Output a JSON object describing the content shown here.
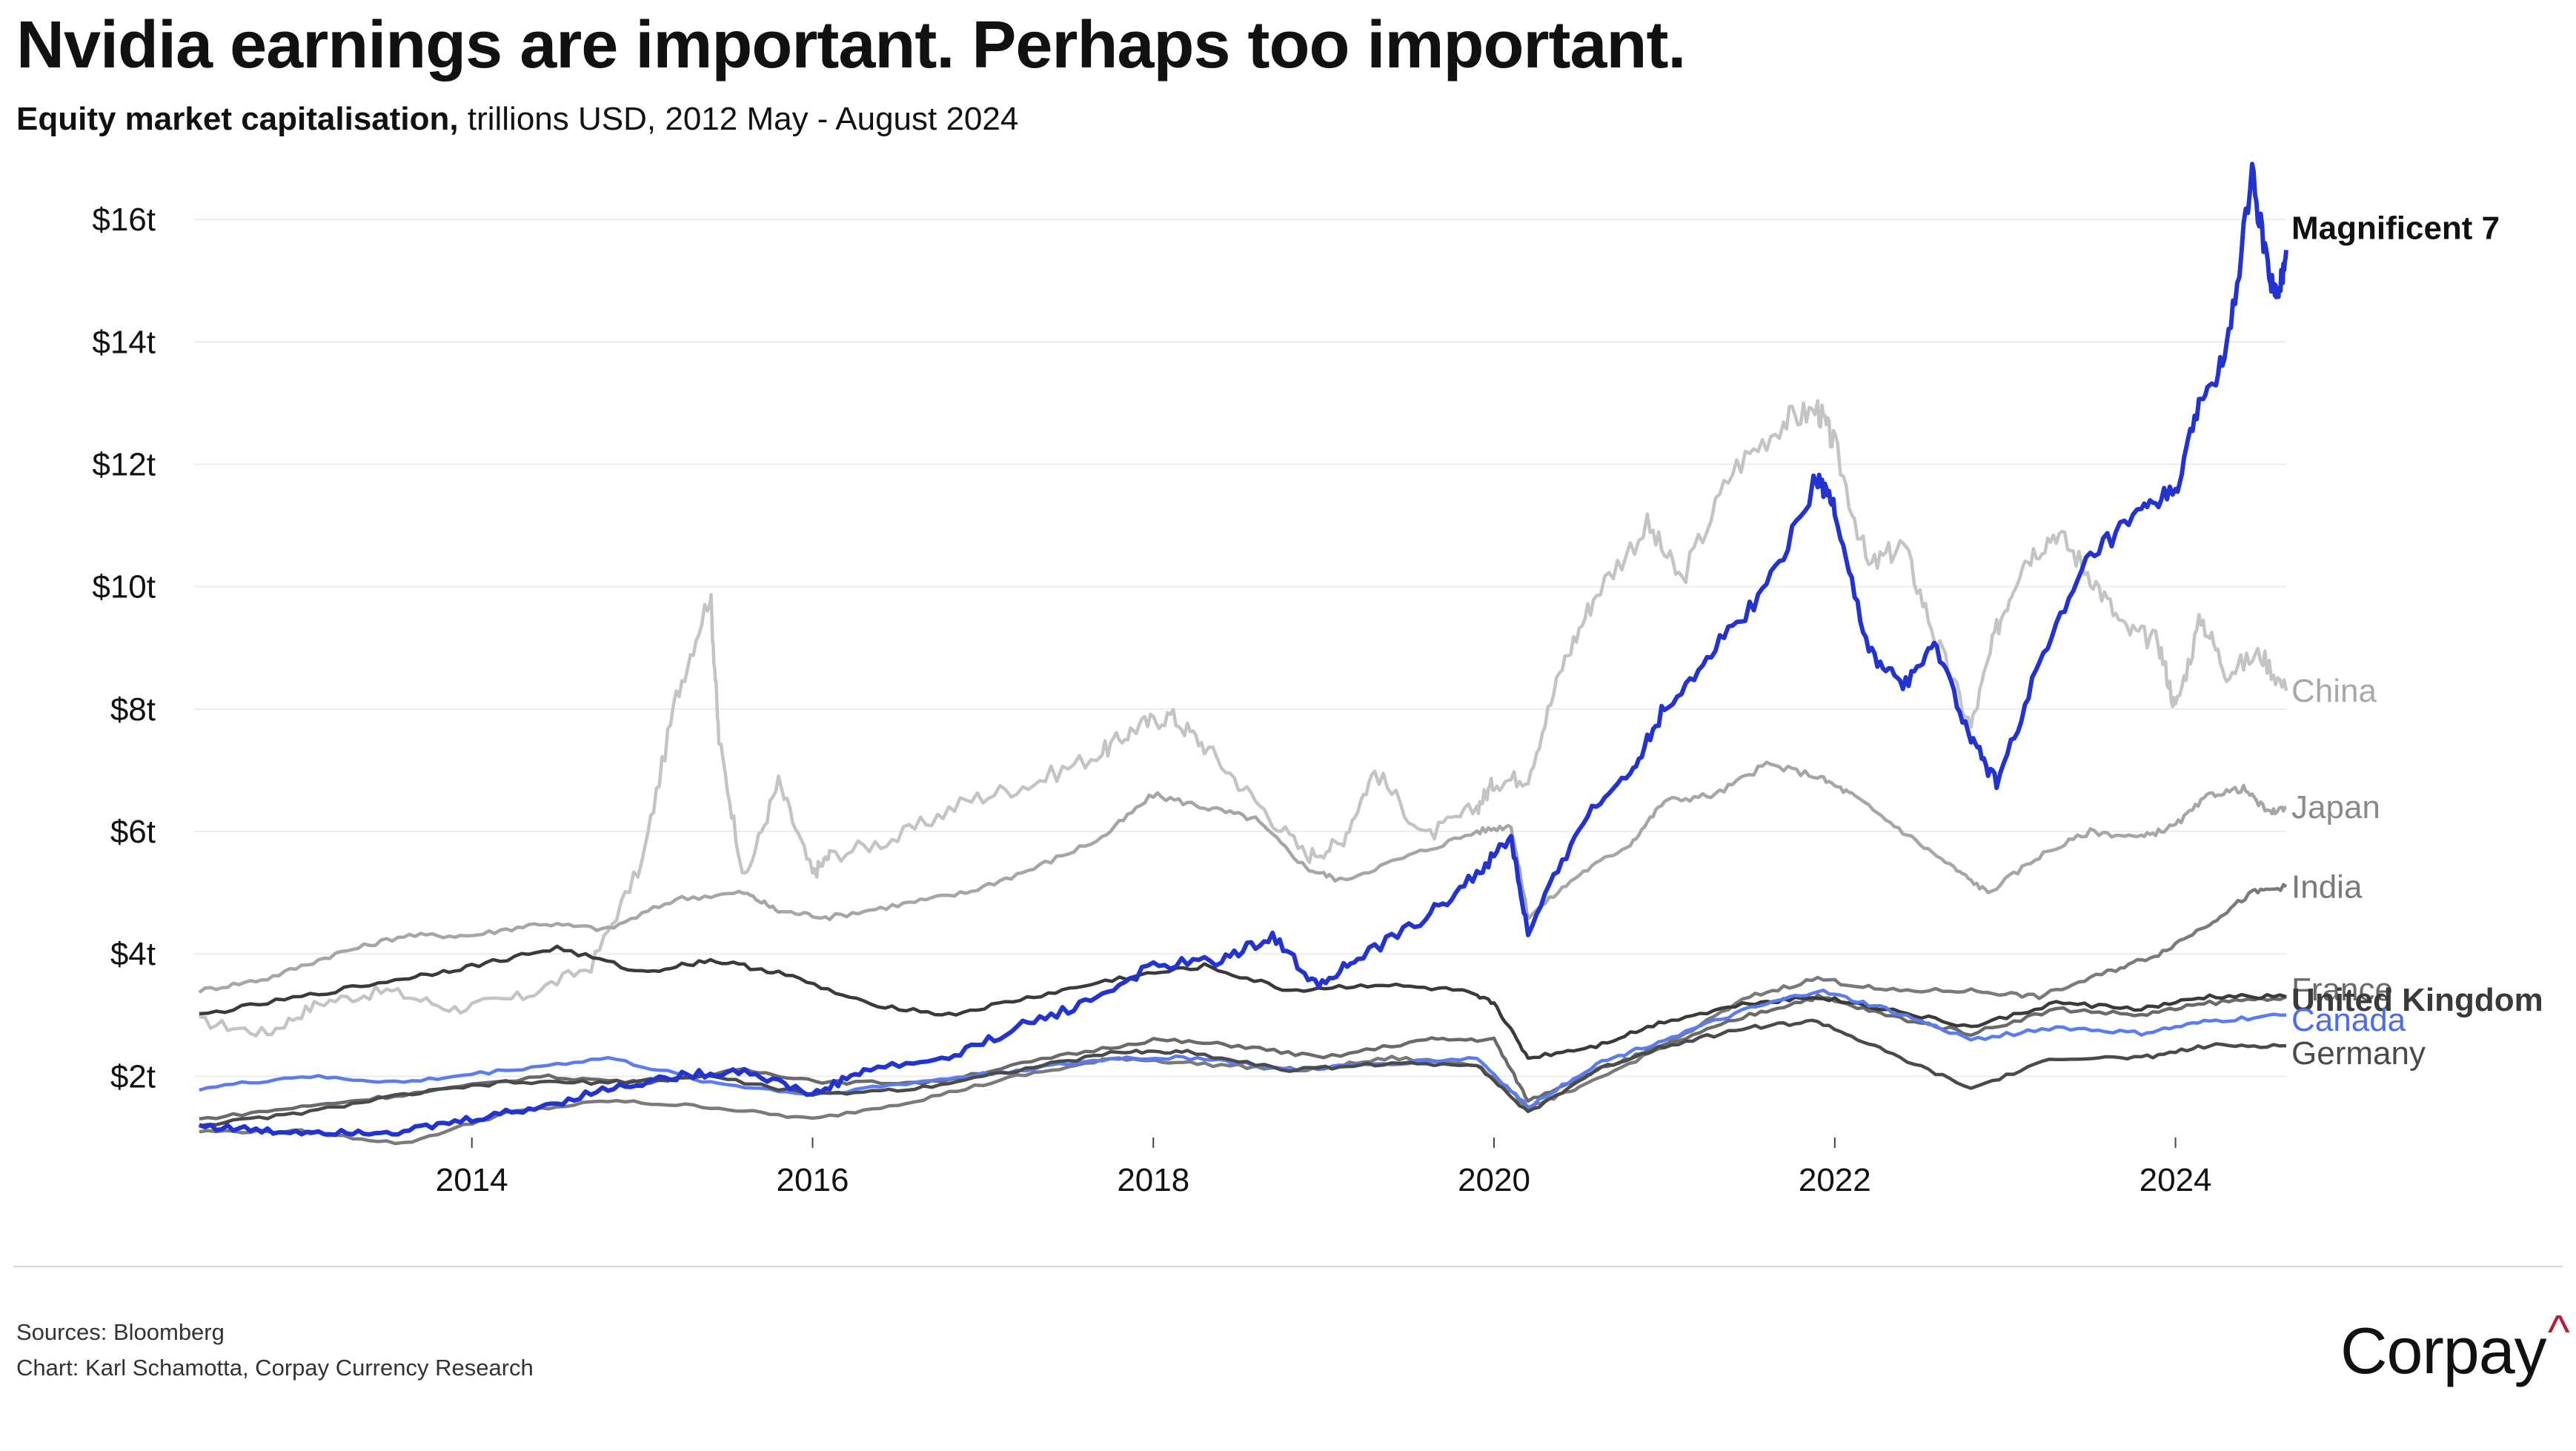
{
  "title": "Nvidia earnings are important. Perhaps too important.",
  "subtitle": {
    "bold": "Equity market capitalisation,",
    "rest": " trillions USD, 2012 May - August 2024"
  },
  "footer": {
    "sources": "Sources: Bloomberg",
    "chart_credit": "Chart: Karl Schamotta, Corpay Currency Research",
    "logo_text": "Corpay",
    "logo_mark": "^"
  },
  "chart_data": {
    "type": "line",
    "title": "Nvidia earnings are important. Perhaps too important.",
    "xlabel": "",
    "ylabel": "Equity market capitalisation, trillions USD",
    "xlim": [
      2012.37,
      2024.65
    ],
    "ylim": [
      1.0,
      16.8
    ],
    "y_ticks": [
      2,
      4,
      6,
      8,
      10,
      12,
      14,
      16
    ],
    "y_tick_labels": [
      "$2t",
      "$4t",
      "$6t",
      "$8t",
      "$10t",
      "$12t",
      "$14t",
      "$16t"
    ],
    "x_ticks": [
      2014,
      2016,
      2018,
      2020,
      2022,
      2024
    ],
    "x_tick_labels": [
      "2014",
      "2016",
      "2018",
      "2020",
      "2022",
      "2024"
    ],
    "grid": true,
    "series": [
      {
        "name": "China",
        "color": "#c4c4c4",
        "x": [
          2012.4,
          2012.8,
          2013.1,
          2013.5,
          2013.9,
          2014.3,
          2014.7,
          2015.0,
          2015.2,
          2015.4,
          2015.45,
          2015.6,
          2015.8,
          2016.0,
          2016.1,
          2016.5,
          2016.9,
          2017.3,
          2017.7,
          2017.9,
          2018.1,
          2018.3,
          2018.6,
          2018.9,
          2019.1,
          2019.3,
          2019.6,
          2019.9,
          2020.0,
          2020.2,
          2020.4,
          2020.6,
          2020.9,
          2021.1,
          2021.4,
          2021.7,
          2021.9,
          2022.0,
          2022.2,
          2022.4,
          2022.6,
          2022.8,
          2022.95,
          2023.1,
          2023.3,
          2023.5,
          2023.7,
          2023.9,
          2024.0,
          2024.15,
          2024.3,
          2024.5,
          2024.65
        ],
        "values": [
          2.9,
          2.7,
          3.2,
          3.4,
          3.1,
          3.3,
          3.8,
          5.5,
          8.2,
          9.9,
          7.5,
          5.2,
          6.8,
          5.3,
          5.6,
          5.9,
          6.5,
          6.8,
          7.3,
          7.7,
          7.9,
          7.4,
          6.5,
          5.6,
          5.8,
          7.0,
          5.9,
          6.4,
          6.8,
          6.9,
          8.7,
          9.9,
          11.0,
          10.1,
          11.9,
          12.7,
          12.9,
          12.3,
          10.3,
          10.7,
          9.1,
          7.7,
          9.3,
          10.4,
          10.9,
          10.2,
          9.3,
          9.1,
          8.0,
          9.5,
          8.6,
          8.9,
          8.3
        ]
      },
      {
        "name": "Japan",
        "color": "#a6a6a6",
        "x": [
          2012.4,
          2012.8,
          2013.2,
          2013.6,
          2014.0,
          2014.4,
          2014.8,
          2015.2,
          2015.6,
          2015.8,
          2016.1,
          2016.5,
          2016.9,
          2017.3,
          2017.7,
          2018.0,
          2018.3,
          2018.6,
          2018.9,
          2019.1,
          2019.5,
          2019.9,
          2020.1,
          2020.2,
          2020.5,
          2020.8,
          2021.0,
          2021.3,
          2021.6,
          2021.9,
          2022.1,
          2022.4,
          2022.7,
          2022.9,
          2023.2,
          2023.5,
          2023.8,
          2024.0,
          2024.2,
          2024.4,
          2024.55,
          2024.65
        ],
        "values": [
          3.4,
          3.6,
          4.0,
          4.3,
          4.3,
          4.5,
          4.4,
          4.9,
          5.0,
          4.7,
          4.6,
          4.8,
          5.0,
          5.4,
          5.9,
          6.6,
          6.4,
          6.2,
          5.4,
          5.2,
          5.6,
          6.0,
          6.1,
          4.6,
          5.3,
          5.8,
          6.5,
          6.6,
          7.1,
          6.9,
          6.6,
          6.0,
          5.4,
          5.0,
          5.6,
          6.0,
          5.9,
          6.1,
          6.6,
          6.7,
          6.3,
          6.4
        ]
      },
      {
        "name": "India",
        "color": "#7a7a7a",
        "x": [
          2012.4,
          2013.0,
          2013.6,
          2014.2,
          2014.8,
          2015.4,
          2016.0,
          2016.6,
          2017.2,
          2017.8,
          2018.3,
          2018.9,
          2019.4,
          2019.9,
          2020.2,
          2020.5,
          2021.0,
          2021.5,
          2021.9,
          2022.3,
          2022.8,
          2023.2,
          2023.6,
          2023.9,
          2024.2,
          2024.45,
          2024.65
        ],
        "values": [
          1.1,
          1.1,
          0.9,
          1.4,
          1.6,
          1.5,
          1.3,
          1.6,
          2.0,
          2.3,
          2.2,
          2.1,
          2.3,
          2.2,
          1.5,
          1.8,
          2.5,
          3.3,
          3.6,
          3.4,
          3.4,
          3.3,
          3.7,
          4.0,
          4.5,
          5.0,
          5.1
        ]
      },
      {
        "name": "France",
        "color": "#6a6a6a",
        "x": [
          2012.4,
          2013.0,
          2013.6,
          2014.4,
          2015.0,
          2015.6,
          2016.1,
          2016.7,
          2017.4,
          2018.0,
          2018.5,
          2019.0,
          2019.6,
          2020.0,
          2020.2,
          2020.6,
          2021.0,
          2021.5,
          2021.9,
          2022.3,
          2022.8,
          2023.3,
          2023.8,
          2024.2,
          2024.65
        ],
        "values": [
          1.3,
          1.5,
          1.7,
          2.0,
          1.9,
          2.1,
          1.9,
          1.9,
          2.3,
          2.6,
          2.5,
          2.3,
          2.6,
          2.6,
          1.6,
          2.1,
          2.5,
          3.0,
          3.3,
          3.0,
          2.7,
          3.1,
          3.0,
          3.2,
          3.3
        ]
      },
      {
        "name": "United Kingdom",
        "color": "#3a3a3a",
        "x": [
          2012.4,
          2013.0,
          2013.6,
          2014.0,
          2014.5,
          2015.0,
          2015.4,
          2015.8,
          2016.3,
          2016.8,
          2017.3,
          2017.8,
          2018.3,
          2018.8,
          2019.3,
          2019.8,
          2020.0,
          2020.2,
          2020.6,
          2021.0,
          2021.5,
          2021.9,
          2022.3,
          2022.8,
          2023.3,
          2023.8,
          2024.2,
          2024.65
        ],
        "values": [
          3.0,
          3.3,
          3.6,
          3.8,
          4.1,
          3.7,
          3.9,
          3.7,
          3.2,
          3.0,
          3.3,
          3.6,
          3.8,
          3.4,
          3.5,
          3.4,
          3.2,
          2.3,
          2.5,
          2.9,
          3.2,
          3.3,
          3.1,
          2.8,
          3.2,
          3.1,
          3.3,
          3.3
        ]
      },
      {
        "name": "Canada",
        "color": "#5b7bf0",
        "x": [
          2012.4,
          2013.0,
          2013.6,
          2014.2,
          2014.8,
          2015.4,
          2016.0,
          2016.6,
          2017.2,
          2017.8,
          2018.3,
          2018.8,
          2019.3,
          2019.9,
          2020.2,
          2020.6,
          2021.0,
          2021.5,
          2021.9,
          2022.3,
          2022.8,
          2023.3,
          2023.8,
          2024.2,
          2024.65
        ],
        "values": [
          1.8,
          2.0,
          1.9,
          2.1,
          2.3,
          1.9,
          1.7,
          1.9,
          2.1,
          2.3,
          2.3,
          2.1,
          2.2,
          2.3,
          1.5,
          2.2,
          2.6,
          3.1,
          3.4,
          3.1,
          2.6,
          2.8,
          2.7,
          2.9,
          3.0
        ]
      },
      {
        "name": "Germany",
        "color": "#4a4a4a",
        "x": [
          2012.4,
          2013.0,
          2013.6,
          2014.2,
          2014.8,
          2015.4,
          2016.0,
          2016.6,
          2017.2,
          2017.8,
          2018.2,
          2018.8,
          2019.3,
          2019.9,
          2020.2,
          2020.6,
          2021.0,
          2021.5,
          2021.9,
          2022.3,
          2022.8,
          2023.3,
          2023.8,
          2024.2,
          2024.65
        ],
        "values": [
          1.2,
          1.4,
          1.7,
          1.9,
          1.9,
          2.0,
          1.7,
          1.8,
          2.1,
          2.4,
          2.4,
          2.1,
          2.2,
          2.2,
          1.4,
          2.1,
          2.5,
          2.8,
          2.9,
          2.4,
          1.8,
          2.3,
          2.3,
          2.5,
          2.5
        ]
      },
      {
        "name": "Magnificent 7",
        "color": "#2233d0",
        "x": [
          2012.4,
          2012.8,
          2013.2,
          2013.6,
          2014.0,
          2014.4,
          2014.8,
          2015.2,
          2015.6,
          2016.0,
          2016.3,
          2016.8,
          2017.2,
          2017.6,
          2018.0,
          2018.4,
          2018.7,
          2018.95,
          2019.2,
          2019.6,
          2019.9,
          2020.1,
          2020.2,
          2020.5,
          2020.8,
          2021.0,
          2021.3,
          2021.6,
          2021.9,
          2022.0,
          2022.2,
          2022.4,
          2022.6,
          2022.8,
          2022.95,
          2023.2,
          2023.5,
          2023.8,
          2024.0,
          2024.15,
          2024.3,
          2024.45,
          2024.55,
          2024.6,
          2024.65
        ],
        "values": [
          1.2,
          1.1,
          1.1,
          1.1,
          1.3,
          1.5,
          1.8,
          2.0,
          2.1,
          1.7,
          2.1,
          2.3,
          2.8,
          3.2,
          3.8,
          3.9,
          4.3,
          3.5,
          3.9,
          4.6,
          5.3,
          5.9,
          4.3,
          6.1,
          7.0,
          8.0,
          9.0,
          10.0,
          11.8,
          11.3,
          8.9,
          8.4,
          9.0,
          7.5,
          6.8,
          8.7,
          10.5,
          11.2,
          11.6,
          13.0,
          13.8,
          16.7,
          15.1,
          14.6,
          15.5
        ]
      }
    ]
  }
}
